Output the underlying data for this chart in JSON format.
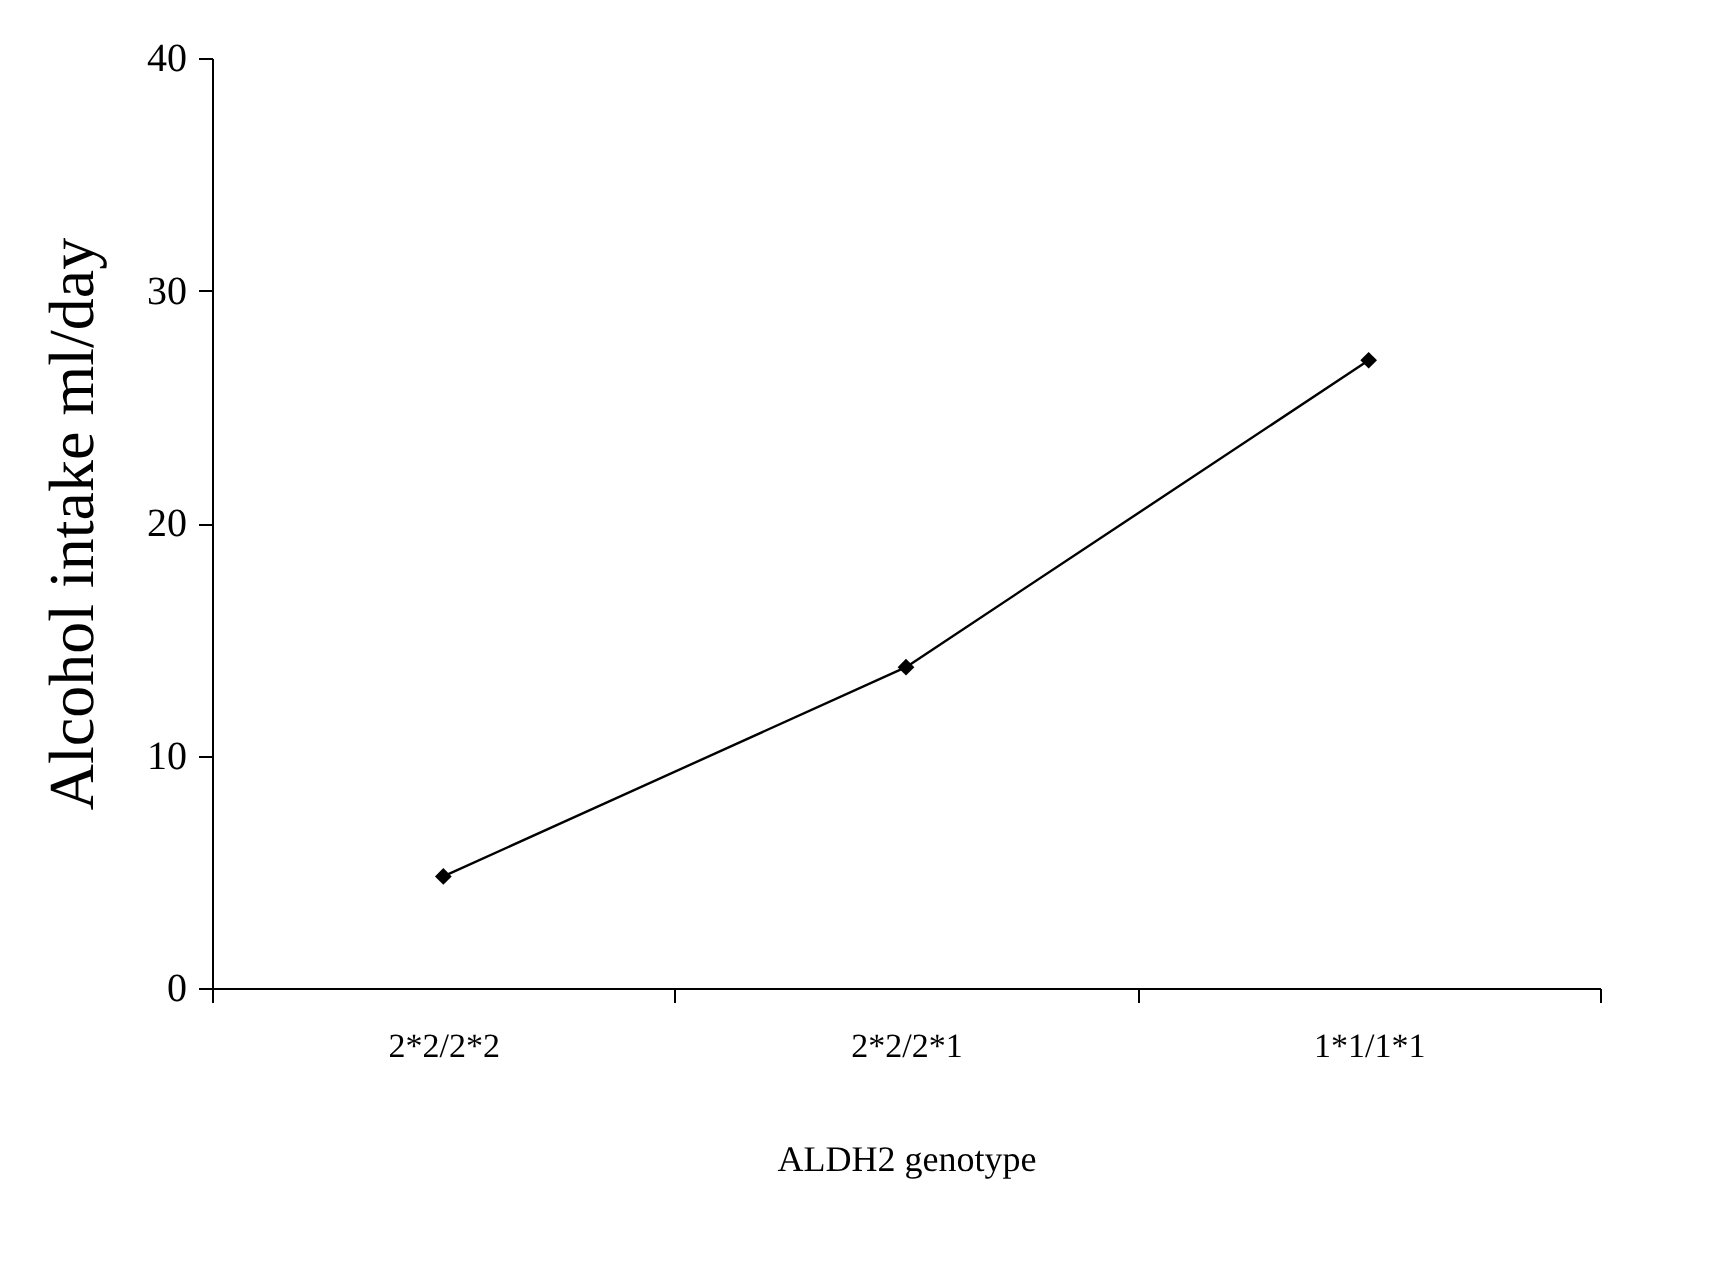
{
  "chart_data": {
    "type": "line",
    "xlabel": "ALDH2 genotype",
    "ylabel": "Alcohol intake ml/day",
    "categories": [
      "2*2/2*2",
      "2*2/2*1",
      "1*1/1*1"
    ],
    "series": [
      {
        "color": "#000000",
        "values": [
          4.8,
          13.8,
          27.0
        ]
      }
    ],
    "ylim": [
      0,
      40
    ],
    "yticks": [
      0,
      10,
      20,
      30,
      40
    ],
    "grid": false,
    "legend": false,
    "marker": "diamond",
    "line_style": "solid"
  }
}
